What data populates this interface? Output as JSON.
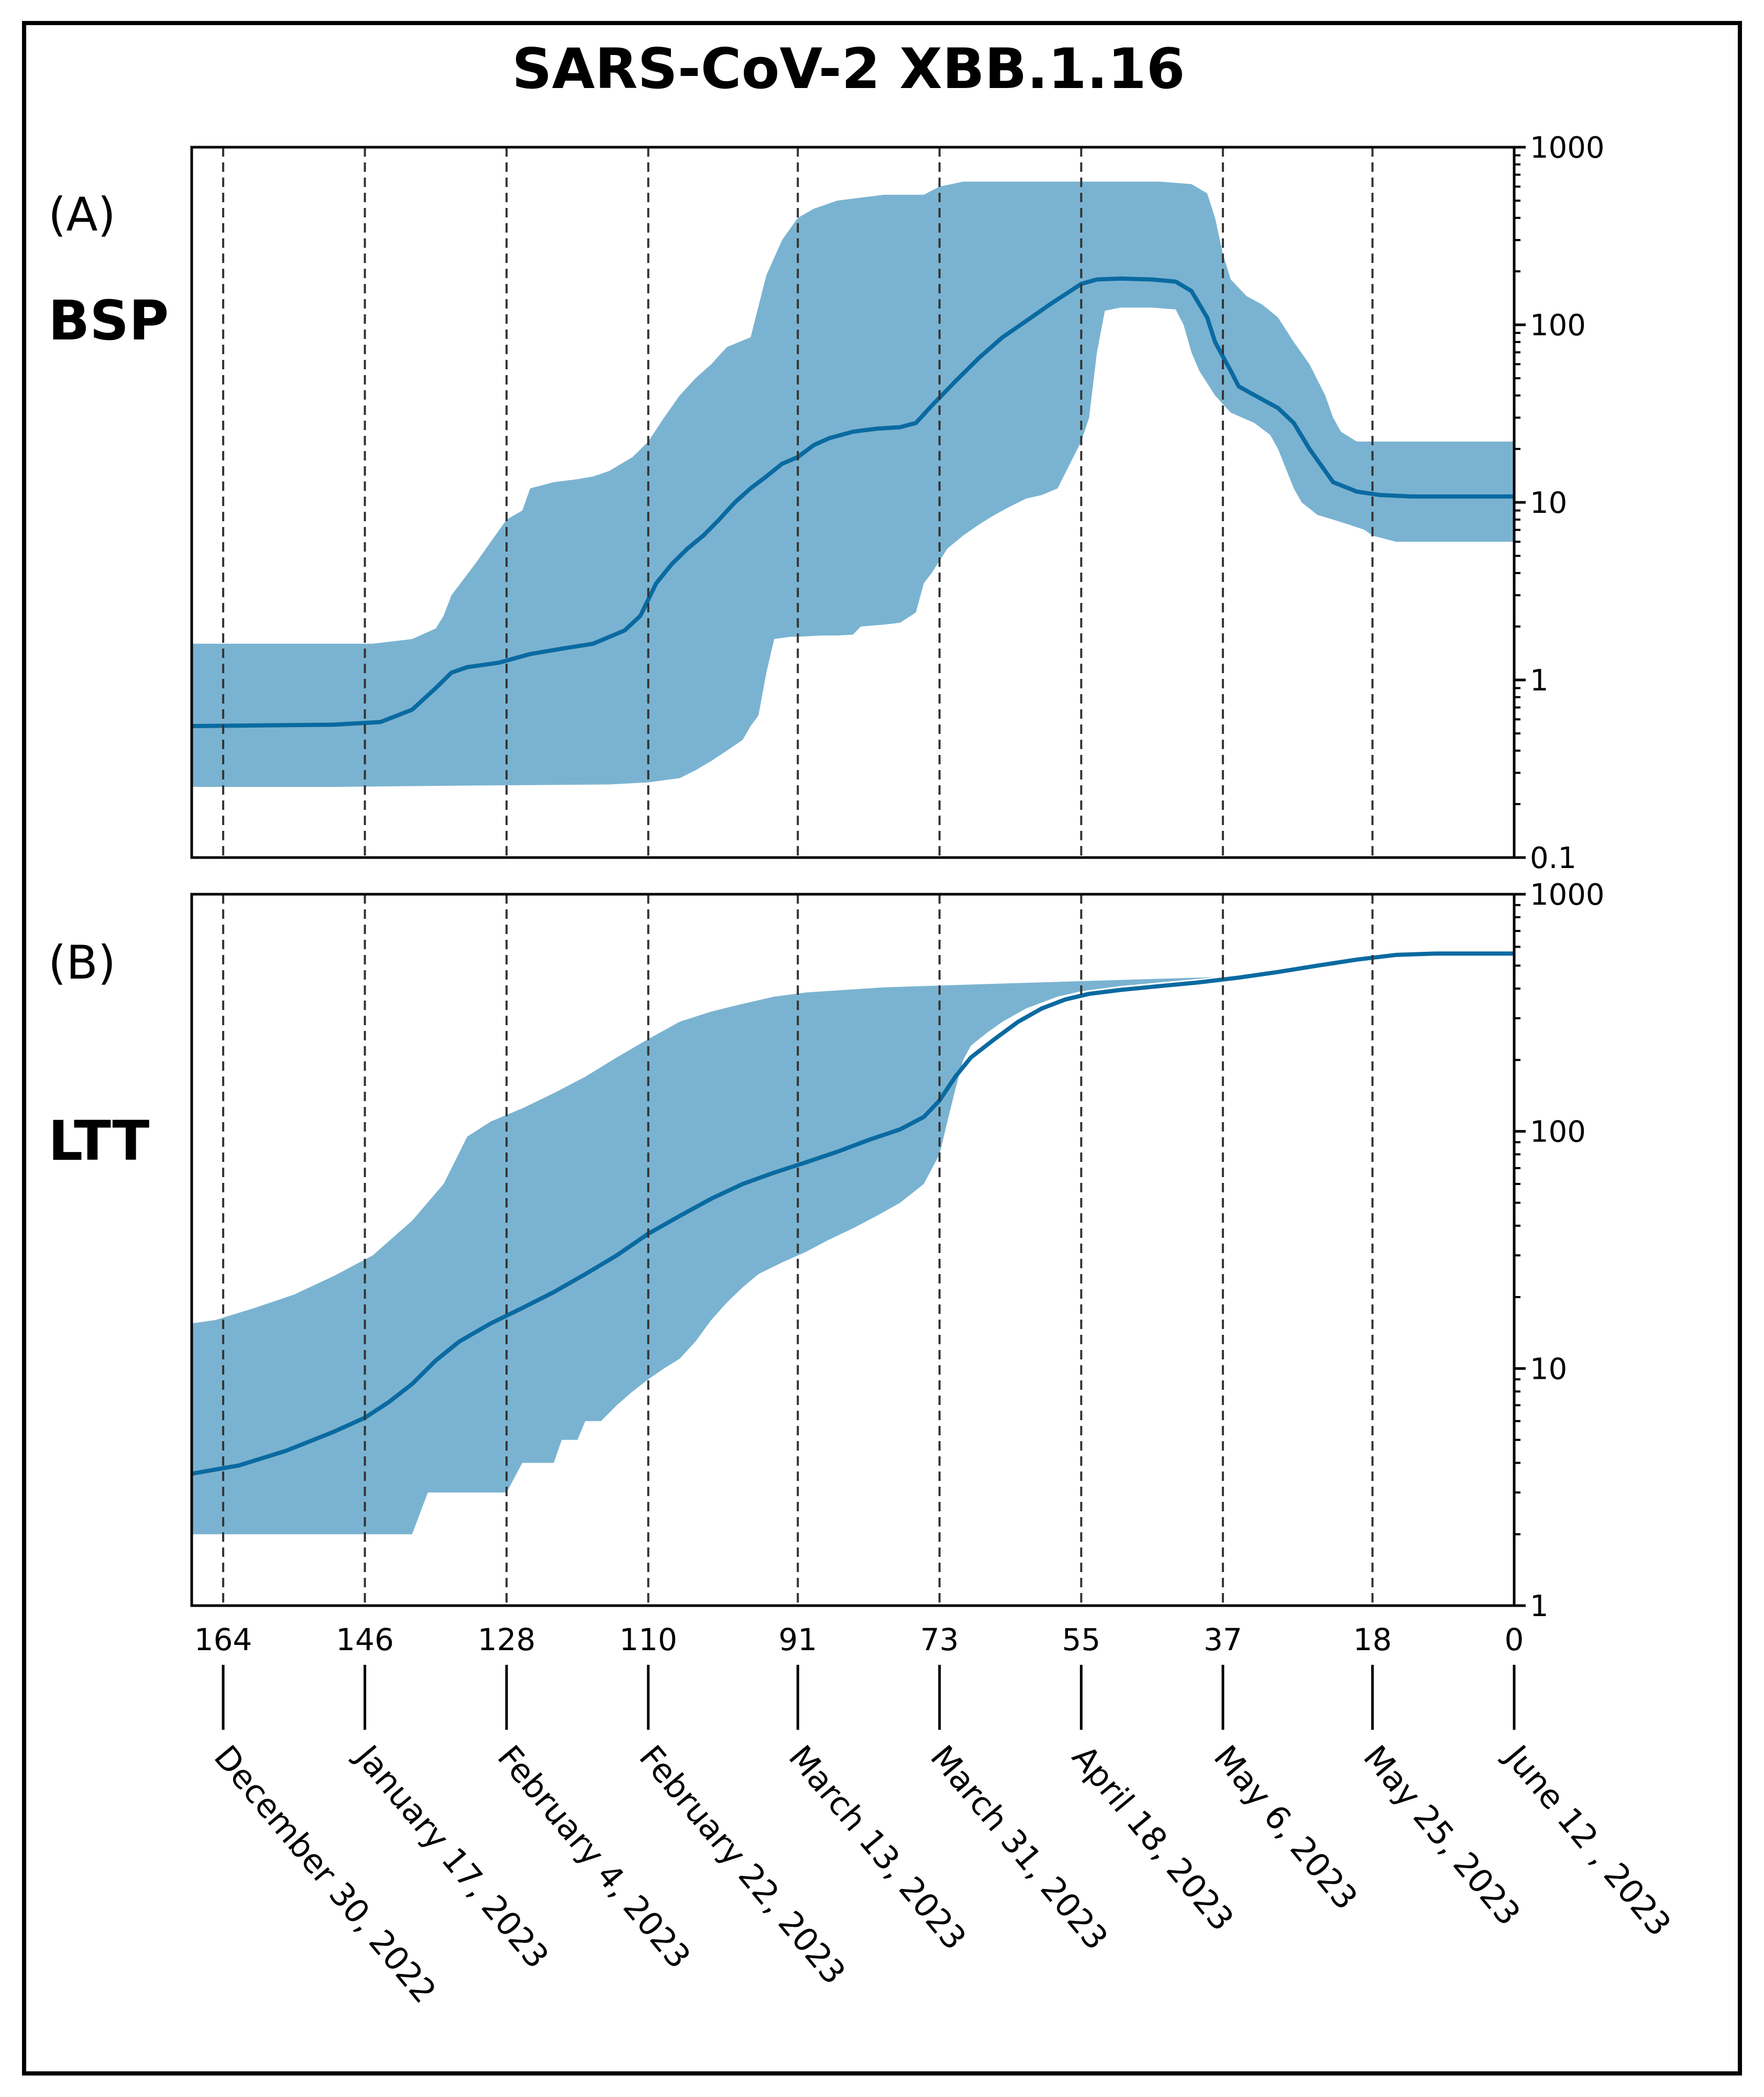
{
  "title": "SARS-CoV-2 XBB.1.16",
  "colors": {
    "band": "#7ab3d1",
    "line": "#0a6aa1",
    "axis": "#000000",
    "vline": "#333333"
  },
  "chart_data": [
    {
      "type": "area",
      "panel_label": "(A)",
      "panel_name": "BSP",
      "yscale": "log",
      "ylim": [
        0.1,
        1000
      ],
      "yticks": [
        0.1,
        1,
        10,
        100,
        1000
      ],
      "ytick_labels": [
        "0.1",
        "1",
        "10",
        "100",
        "1000"
      ],
      "xlim": [
        168,
        0
      ],
      "grid": "dashed vertical lines at date ticks",
      "median": [
        [
          168,
          0.55
        ],
        [
          150,
          0.56
        ],
        [
          144,
          0.58
        ],
        [
          140,
          0.68
        ],
        [
          137,
          0.9
        ],
        [
          135,
          1.1
        ],
        [
          133,
          1.18
        ],
        [
          129,
          1.25
        ],
        [
          125,
          1.4
        ],
        [
          121,
          1.5
        ],
        [
          117,
          1.6
        ],
        [
          113,
          1.9
        ],
        [
          111,
          2.3
        ],
        [
          109,
          3.5
        ],
        [
          107,
          4.5
        ],
        [
          105,
          5.5
        ],
        [
          103,
          6.5
        ],
        [
          101,
          8
        ],
        [
          99,
          10
        ],
        [
          97,
          12
        ],
        [
          95,
          14
        ],
        [
          93,
          16.5
        ],
        [
          91,
          18
        ],
        [
          89,
          21
        ],
        [
          87,
          23
        ],
        [
          84,
          25
        ],
        [
          81,
          26
        ],
        [
          78,
          26.5
        ],
        [
          76,
          28
        ],
        [
          74,
          35
        ],
        [
          71,
          48
        ],
        [
          68,
          65
        ],
        [
          65,
          85
        ],
        [
          62,
          105
        ],
        [
          59,
          130
        ],
        [
          55,
          170
        ],
        [
          53,
          180
        ],
        [
          50,
          182
        ],
        [
          46,
          180
        ],
        [
          43,
          175
        ],
        [
          41,
          155
        ],
        [
          39,
          110
        ],
        [
          38,
          80
        ],
        [
          36,
          55
        ],
        [
          35,
          45
        ],
        [
          32,
          38
        ],
        [
          30,
          34
        ],
        [
          28,
          28
        ],
        [
          26,
          20
        ],
        [
          23,
          13
        ],
        [
          20,
          11.5
        ],
        [
          17,
          11
        ],
        [
          13,
          10.8
        ],
        [
          0,
          10.8
        ]
      ],
      "upper": [
        [
          168,
          1.6
        ],
        [
          145,
          1.6
        ],
        [
          140,
          1.7
        ],
        [
          137,
          1.95
        ],
        [
          136,
          2.3
        ],
        [
          135,
          3.0
        ],
        [
          132,
          4.5
        ],
        [
          130,
          6.0
        ],
        [
          128,
          8.0
        ],
        [
          126,
          9.0
        ],
        [
          125,
          12.0
        ],
        [
          122,
          13.0
        ],
        [
          119,
          13.5
        ],
        [
          117,
          14.0
        ],
        [
          115,
          15.0
        ],
        [
          112,
          18.0
        ],
        [
          110,
          22.0
        ],
        [
          108,
          30.0
        ],
        [
          106,
          40.0
        ],
        [
          104,
          50.0
        ],
        [
          102,
          60.0
        ],
        [
          100,
          75.0
        ],
        [
          97,
          85.0
        ],
        [
          95,
          190.0
        ],
        [
          93,
          300.0
        ],
        [
          91,
          400.0
        ],
        [
          89,
          450.0
        ],
        [
          86,
          500.0
        ],
        [
          83,
          520.0
        ],
        [
          80,
          540.0
        ],
        [
          75,
          540.0
        ],
        [
          73,
          600.0
        ],
        [
          70,
          640.0
        ],
        [
          60,
          640.0
        ],
        [
          55,
          640.0
        ],
        [
          45,
          640.0
        ],
        [
          41,
          620.0
        ],
        [
          39,
          550.0
        ],
        [
          38,
          400.0
        ],
        [
          37,
          250.0
        ],
        [
          36,
          180.0
        ],
        [
          34,
          145.0
        ],
        [
          32,
          130.0
        ],
        [
          30,
          110.0
        ],
        [
          28,
          80.0
        ],
        [
          26,
          60.0
        ],
        [
          24,
          40.0
        ],
        [
          23,
          30.0
        ],
        [
          22,
          25.0
        ],
        [
          20,
          22.0
        ],
        [
          0,
          22.0
        ]
      ],
      "lower": [
        [
          168,
          0.25
        ],
        [
          150,
          0.25
        ],
        [
          130,
          0.255
        ],
        [
          115,
          0.258
        ],
        [
          110,
          0.265
        ],
        [
          106,
          0.28
        ],
        [
          104,
          0.31
        ],
        [
          102,
          0.35
        ],
        [
          100,
          0.4
        ],
        [
          98,
          0.46
        ],
        [
          97,
          0.55
        ],
        [
          96,
          0.63
        ],
        [
          95,
          1.1
        ],
        [
          94,
          1.7
        ],
        [
          92,
          1.75
        ],
        [
          90,
          1.76
        ],
        [
          88,
          1.78
        ],
        [
          86,
          1.78
        ],
        [
          84,
          1.8
        ],
        [
          83,
          2.0
        ],
        [
          80,
          2.05
        ],
        [
          78,
          2.1
        ],
        [
          76,
          2.4
        ],
        [
          75,
          3.5
        ],
        [
          74,
          4.0
        ],
        [
          72,
          5.5
        ],
        [
          70,
          6.5
        ],
        [
          68,
          7.5
        ],
        [
          66,
          8.5
        ],
        [
          64,
          9.5
        ],
        [
          62,
          10.5
        ],
        [
          60,
          11.0
        ],
        [
          58,
          12.0
        ],
        [
          56,
          18.0
        ],
        [
          55,
          22.0
        ],
        [
          54,
          30.0
        ],
        [
          53,
          70.0
        ],
        [
          52,
          120.0
        ],
        [
          50,
          125.0
        ],
        [
          46,
          125.0
        ],
        [
          43,
          122.0
        ],
        [
          42,
          100.0
        ],
        [
          41,
          70.0
        ],
        [
          40,
          55.0
        ],
        [
          38,
          40.0
        ],
        [
          36,
          32.0
        ],
        [
          33,
          28.0
        ],
        [
          31,
          24.0
        ],
        [
          30,
          20.0
        ],
        [
          28,
          12.0
        ],
        [
          27,
          10.0
        ],
        [
          25,
          8.5
        ],
        [
          23,
          8.0
        ],
        [
          21,
          7.5
        ],
        [
          19,
          7.0
        ],
        [
          18,
          6.5
        ],
        [
          15,
          6.0
        ],
        [
          0,
          6.0
        ]
      ]
    },
    {
      "type": "area",
      "panel_label": "(B)",
      "panel_name": "LTT",
      "yscale": "log",
      "ylim": [
        1,
        1000
      ],
      "yticks": [
        1,
        10,
        100,
        1000
      ],
      "ytick_labels": [
        "1",
        "10",
        "100",
        "1000"
      ],
      "xlim": [
        168,
        0
      ],
      "grid": "dashed vertical lines at date ticks",
      "median": [
        [
          168,
          3.6
        ],
        [
          162,
          3.9
        ],
        [
          156,
          4.5
        ],
        [
          150,
          5.4
        ],
        [
          146,
          6.2
        ],
        [
          143,
          7.2
        ],
        [
          140,
          8.6
        ],
        [
          137,
          10.8
        ],
        [
          134,
          13.0
        ],
        [
          130,
          15.5
        ],
        [
          126,
          18.0
        ],
        [
          122,
          21.0
        ],
        [
          118,
          25.0
        ],
        [
          114,
          30.0
        ],
        [
          110,
          37.0
        ],
        [
          106,
          44.0
        ],
        [
          102,
          52.0
        ],
        [
          98,
          60.0
        ],
        [
          94,
          67.0
        ],
        [
          90,
          74.0
        ],
        [
          86,
          82.0
        ],
        [
          82,
          92.0
        ],
        [
          78,
          102.0
        ],
        [
          75,
          115.0
        ],
        [
          73,
          135.0
        ],
        [
          71,
          170.0
        ],
        [
          69,
          205.0
        ],
        [
          66,
          245.0
        ],
        [
          63,
          290.0
        ],
        [
          60,
          330.0
        ],
        [
          57,
          360.0
        ],
        [
          54,
          380.0
        ],
        [
          50,
          395.0
        ],
        [
          45,
          410.0
        ],
        [
          40,
          425.0
        ],
        [
          35,
          445.0
        ],
        [
          30,
          470.0
        ],
        [
          25,
          500.0
        ],
        [
          20,
          530.0
        ],
        [
          15,
          555.0
        ],
        [
          10,
          562.0
        ],
        [
          0,
          562.0
        ]
      ],
      "upper": [
        [
          168,
          15.5
        ],
        [
          165,
          16.0
        ],
        [
          160,
          18.0
        ],
        [
          155,
          20.5
        ],
        [
          150,
          24.5
        ],
        [
          145,
          30.0
        ],
        [
          140,
          42.0
        ],
        [
          136,
          60.0
        ],
        [
          133,
          95.0
        ],
        [
          130,
          110.0
        ],
        [
          126,
          125.0
        ],
        [
          122,
          145.0
        ],
        [
          118,
          170.0
        ],
        [
          114,
          205.0
        ],
        [
          110,
          245.0
        ],
        [
          106,
          290.0
        ],
        [
          102,
          320.0
        ],
        [
          98,
          345.0
        ],
        [
          94,
          370.0
        ],
        [
          90,
          385.0
        ],
        [
          85,
          395.0
        ],
        [
          80,
          405.0
        ],
        [
          75,
          410.0
        ],
        [
          70,
          415.0
        ],
        [
          65,
          420.0
        ],
        [
          60,
          425.0
        ],
        [
          55,
          430.0
        ],
        [
          50,
          435.0
        ],
        [
          45,
          440.0
        ],
        [
          40,
          445.0
        ],
        [
          38,
          448.0
        ]
      ],
      "lower": [
        [
          168,
          2.0
        ],
        [
          140,
          2.0
        ],
        [
          138,
          3.0
        ],
        [
          133,
          3.0
        ],
        [
          130,
          3.0
        ],
        [
          128,
          3.0
        ],
        [
          126,
          4.0
        ],
        [
          122,
          4.0
        ],
        [
          121,
          5.0
        ],
        [
          119,
          5.0
        ],
        [
          118,
          6.0
        ],
        [
          116,
          6.0
        ],
        [
          114,
          7.0
        ],
        [
          112,
          8.0
        ],
        [
          110,
          9.0
        ],
        [
          108,
          10.0
        ],
        [
          106,
          11.0
        ],
        [
          104,
          13.0
        ],
        [
          102,
          16.0
        ],
        [
          100,
          19.0
        ],
        [
          98,
          22.0
        ],
        [
          96,
          25.0
        ],
        [
          93,
          28.0
        ],
        [
          90,
          31.0
        ],
        [
          87,
          35.0
        ],
        [
          84,
          39.0
        ],
        [
          81,
          44.0
        ],
        [
          78,
          50.0
        ],
        [
          75,
          60.0
        ],
        [
          73,
          80.0
        ],
        [
          72,
          110.0
        ],
        [
          71,
          150.0
        ],
        [
          70,
          200.0
        ],
        [
          69,
          230.0
        ],
        [
          67,
          260.0
        ],
        [
          65,
          290.0
        ],
        [
          62,
          330.0
        ],
        [
          58,
          370.0
        ],
        [
          55,
          390.0
        ],
        [
          50,
          410.0
        ],
        [
          45,
          425.0
        ],
        [
          40,
          440.0
        ],
        [
          38,
          448.0
        ]
      ]
    }
  ],
  "x_axis": {
    "ticks": [
      164,
      146,
      128,
      110,
      91,
      73,
      55,
      37,
      18,
      0
    ],
    "tick_labels": [
      "164",
      "146",
      "128",
      "110",
      "91",
      "73",
      "55",
      "37",
      "18",
      "0"
    ],
    "dates": [
      "December 30, 2022",
      "January 17, 2023",
      "February 4, 2023",
      "February 22, 2023",
      "March 13, 2023",
      "March 31, 2023",
      "April 18, 2023",
      "May 6, 2023",
      "May 25, 2023",
      "June 12 , 2023"
    ]
  }
}
